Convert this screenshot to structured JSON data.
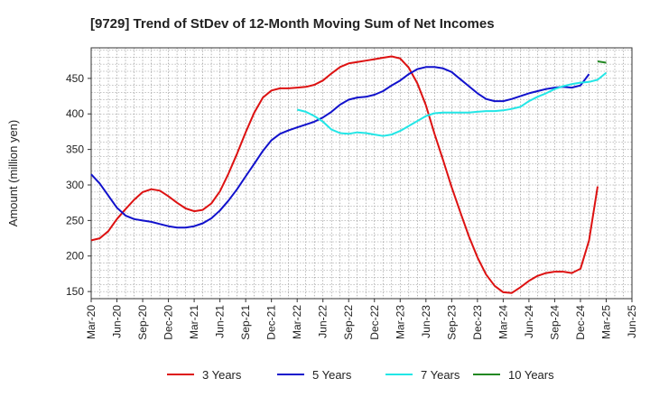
{
  "chart_data": {
    "type": "line",
    "title": "[9729]  Trend of StDev of 12-Month Moving Sum of Net Incomes",
    "xlabel": "",
    "ylabel": "Amount (million yen)",
    "x_ticks": [
      "Mar-20",
      "Jun-20",
      "Sep-20",
      "Dec-20",
      "Mar-21",
      "Jun-21",
      "Sep-21",
      "Dec-21",
      "Mar-22",
      "Jun-22",
      "Sep-22",
      "Dec-22",
      "Mar-23",
      "Jun-23",
      "Sep-23",
      "Dec-23",
      "Mar-24",
      "Jun-24",
      "Sep-24",
      "Dec-24",
      "Mar-25",
      "Jun-25"
    ],
    "y_ticks": [
      150,
      200,
      250,
      300,
      350,
      400,
      450
    ],
    "ylim": [
      140,
      493
    ],
    "grid": true,
    "legend_position": "bottom",
    "series": [
      {
        "name": "3 Years",
        "color": "#dd1111",
        "x": [
          "2020-03",
          "2020-04",
          "2020-05",
          "2020-06",
          "2020-07",
          "2020-08",
          "2020-09",
          "2020-10",
          "2020-11",
          "2020-12",
          "2021-01",
          "2021-02",
          "2021-03",
          "2021-04",
          "2021-05",
          "2021-06",
          "2021-07",
          "2021-08",
          "2021-09",
          "2021-10",
          "2021-11",
          "2021-12",
          "2022-01",
          "2022-02",
          "2022-03",
          "2022-04",
          "2022-05",
          "2022-06",
          "2022-07",
          "2022-08",
          "2022-09",
          "2022-10",
          "2022-11",
          "2022-12",
          "2023-01",
          "2023-02",
          "2023-03",
          "2023-04",
          "2023-05",
          "2023-06",
          "2023-07",
          "2023-08",
          "2023-09",
          "2023-10",
          "2023-11",
          "2023-12",
          "2024-01",
          "2024-02",
          "2024-03",
          "2024-04",
          "2024-05",
          "2024-06",
          "2024-07",
          "2024-08",
          "2024-09",
          "2024-10",
          "2024-11",
          "2024-12",
          "2025-01",
          "2025-02",
          "2025-03"
        ],
        "values": [
          222,
          225,
          235,
          252,
          266,
          279,
          290,
          294,
          292,
          284,
          275,
          267,
          263,
          265,
          274,
          291,
          316,
          344,
          374,
          402,
          423,
          433,
          436,
          436,
          437,
          438,
          441,
          447,
          457,
          466,
          471,
          473,
          475,
          477,
          479,
          481,
          478,
          465,
          443,
          412,
          372,
          335,
          297,
          262,
          228,
          198,
          174,
          158,
          149,
          148,
          156,
          165,
          172,
          176,
          178,
          178,
          176,
          182,
          222,
          298,
          null
        ],
        "values_note": ""
      },
      {
        "name": "5 Years",
        "color": "#1111cc",
        "x": [
          "2020-03",
          "2020-04",
          "2020-05",
          "2020-06",
          "2020-07",
          "2020-08",
          "2020-09",
          "2020-10",
          "2020-11",
          "2020-12",
          "2021-01",
          "2021-02",
          "2021-03",
          "2021-04",
          "2021-05",
          "2021-06",
          "2021-07",
          "2021-08",
          "2021-09",
          "2021-10",
          "2021-11",
          "2021-12",
          "2022-01",
          "2022-02",
          "2022-03",
          "2022-04",
          "2022-05",
          "2022-06",
          "2022-07",
          "2022-08",
          "2022-09",
          "2022-10",
          "2022-11",
          "2022-12",
          "2023-01",
          "2023-02",
          "2023-03",
          "2023-04",
          "2023-05",
          "2023-06",
          "2023-07",
          "2023-08",
          "2023-09",
          "2023-10",
          "2023-11",
          "2023-12",
          "2024-01",
          "2024-02",
          "2024-03",
          "2024-04",
          "2024-05",
          "2024-06",
          "2024-07",
          "2024-08",
          "2024-09",
          "2024-10",
          "2024-11",
          "2024-12",
          "2025-01",
          "2025-02",
          "2025-03"
        ],
        "values": [
          315,
          302,
          285,
          268,
          257,
          252,
          250,
          248,
          245,
          242,
          240,
          240,
          242,
          246,
          253,
          264,
          278,
          294,
          312,
          330,
          348,
          363,
          372,
          377,
          381,
          385,
          389,
          395,
          403,
          413,
          420,
          423,
          424,
          427,
          432,
          440,
          447,
          456,
          463,
          466,
          466,
          464,
          459,
          449,
          439,
          429,
          421,
          418,
          418,
          421,
          425,
          429,
          432,
          435,
          437,
          438,
          437,
          440,
          456,
          null,
          null
        ],
        "values_note": ""
      },
      {
        "name": "7 Years",
        "color": "#22e6e6",
        "x": [
          "2022-03",
          "2022-04",
          "2022-05",
          "2022-06",
          "2022-07",
          "2022-08",
          "2022-09",
          "2022-10",
          "2022-11",
          "2022-12",
          "2023-01",
          "2023-02",
          "2023-03",
          "2023-04",
          "2023-05",
          "2023-06",
          "2023-07",
          "2023-08",
          "2023-09",
          "2023-10",
          "2023-11",
          "2023-12",
          "2024-01",
          "2024-02",
          "2024-03",
          "2024-04",
          "2024-05",
          "2024-06",
          "2024-07",
          "2024-08",
          "2024-09",
          "2024-10",
          "2024-11",
          "2024-12",
          "2025-01",
          "2025-02",
          "2025-03"
        ],
        "values": [
          406,
          403,
          397,
          389,
          378,
          373,
          372,
          374,
          373,
          371,
          369,
          371,
          376,
          383,
          390,
          397,
          401,
          402,
          402,
          402,
          402,
          403,
          404,
          404,
          405,
          407,
          410,
          418,
          424,
          429,
          435,
          439,
          442,
          444,
          445,
          448,
          458
        ],
        "values_note": ""
      },
      {
        "name": "10 Years",
        "color": "#228822",
        "x": [
          "2025-02",
          "2025-03"
        ],
        "values": [
          474,
          472
        ],
        "values_note": ""
      }
    ]
  }
}
